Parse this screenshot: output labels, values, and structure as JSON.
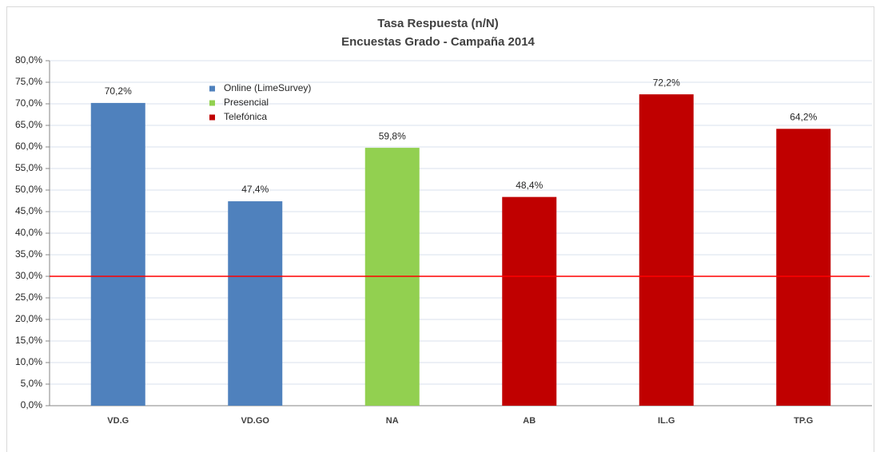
{
  "chart_data": {
    "type": "bar",
    "title": "Tasa Respuesta (n/N)",
    "subtitle": "Encuestas Grado - Campaña 2014",
    "categories": [
      "VD.G",
      "VD.GO",
      "NA",
      "AB",
      "IL.G",
      "TP.G"
    ],
    "series": [
      {
        "name": "Online (LimeSurvey)",
        "color": "#4f81bd",
        "values": [
          70.2,
          47.4,
          null,
          null,
          null,
          null
        ],
        "value_labels": [
          "70,2%",
          "47,4%",
          null,
          null,
          null,
          null
        ]
      },
      {
        "name": "Presencial",
        "color": "#92d050",
        "values": [
          null,
          null,
          59.8,
          null,
          null,
          null
        ],
        "value_labels": [
          null,
          null,
          "59,8%",
          null,
          null,
          null
        ]
      },
      {
        "name": "Telefónica",
        "color": "#c00000",
        "values": [
          null,
          null,
          null,
          48.4,
          72.2,
          64.2
        ],
        "value_labels": [
          null,
          null,
          null,
          "48,4%",
          "72,2%",
          "64,2%"
        ]
      }
    ],
    "ylim": [
      0,
      80
    ],
    "yticks": [
      {
        "value": 0,
        "label": "0,0%"
      },
      {
        "value": 5,
        "label": "5,0%"
      },
      {
        "value": 10,
        "label": "10,0%"
      },
      {
        "value": 15,
        "label": "15,0%"
      },
      {
        "value": 20,
        "label": "20,0%"
      },
      {
        "value": 25,
        "label": "25,0%"
      },
      {
        "value": 30,
        "label": "30,0%"
      },
      {
        "value": 35,
        "label": "35,0%"
      },
      {
        "value": 40,
        "label": "40,0%"
      },
      {
        "value": 45,
        "label": "45,0%"
      },
      {
        "value": 50,
        "label": "50,0%"
      },
      {
        "value": 55,
        "label": "55,0%"
      },
      {
        "value": 60,
        "label": "60,0%"
      },
      {
        "value": 65,
        "label": "65,0%"
      },
      {
        "value": 70,
        "label": "70,0%"
      },
      {
        "value": 75,
        "label": "75,0%"
      },
      {
        "value": 80,
        "label": "80,0%"
      }
    ],
    "grid": true,
    "reference_line": {
      "value": 30,
      "color": "#ff0000"
    }
  }
}
